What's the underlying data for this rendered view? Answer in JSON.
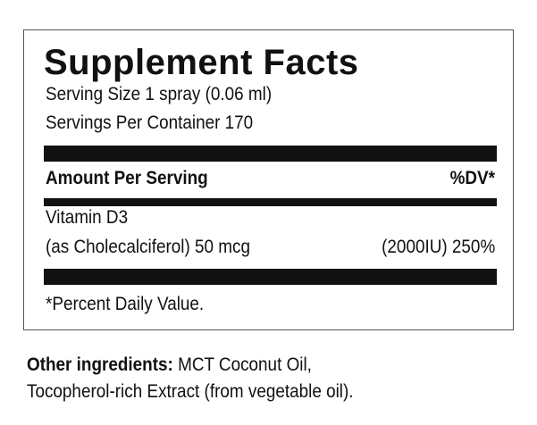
{
  "label": {
    "title": "Supplement Facts",
    "serving_size": "Serving Size 1 spray (0.06 ml)",
    "servings_per_container": "Servings Per Container 170",
    "amount_header": "Amount Per Serving",
    "dv_header": "%DV*",
    "nutrient_name": "Vitamin D3",
    "nutrient_detail": "(as Cholecalciferol) 50 mcg",
    "nutrient_dv": "(2000IU) 250%",
    "footnote": "*Percent Daily Value."
  },
  "other": {
    "label": "Other ingredients:",
    "line1": " MCT Coconut Oil,",
    "line2": "Tocopherol-rich Extract (from vegetable oil)."
  }
}
